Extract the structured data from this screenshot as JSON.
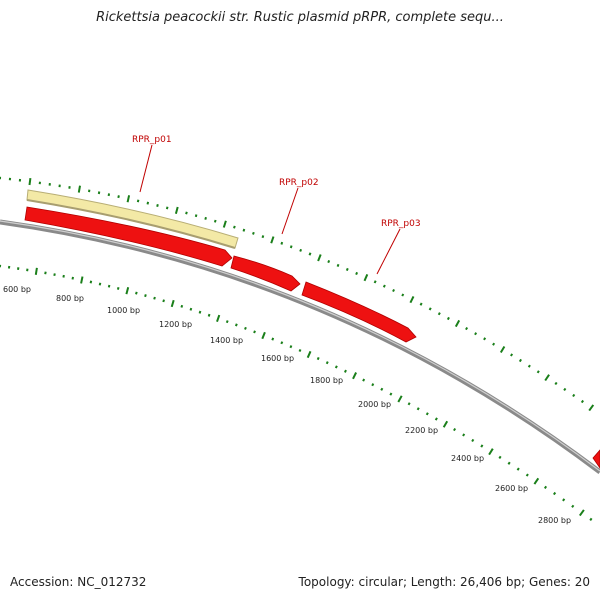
{
  "title": "Rickettsia peacockii str. Rustic plasmid pRPR, complete sequ...",
  "footer": {
    "accession": "Accession: NC_012732",
    "summary": "Topology: circular; Length: 26,406 bp; Genes: 20"
  },
  "colors": {
    "gene_arrow": "#ee1111",
    "gene_fill_yellow": "#f3e9a6",
    "backbone": "#888888",
    "tick_green": "#1a7f1a",
    "label_red": "#c00000"
  },
  "genes": [
    {
      "name": "RPR_p01",
      "label": "RPR_p01"
    },
    {
      "name": "RPR_p02",
      "label": "RPR_p02"
    },
    {
      "name": "RPR_p03",
      "label": "RPR_p03"
    }
  ],
  "ruler_labels": [
    "600 bp",
    "800 bp",
    "1000 bp",
    "1200 bp",
    "1400 bp",
    "1600 bp",
    "1800 bp",
    "2000 bp",
    "2200 bp",
    "2400 bp",
    "2600 bp",
    "2800 bp"
  ]
}
